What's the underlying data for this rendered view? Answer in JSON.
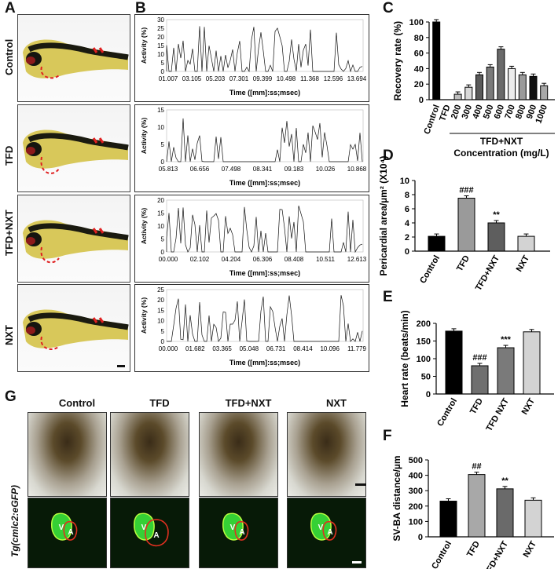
{
  "panel_letters": {
    "A": "A",
    "B": "B",
    "C": "C",
    "D": "D",
    "E": "E",
    "F": "F",
    "G": "G"
  },
  "rows": [
    {
      "label": "Control",
      "ticks": [
        "01.007",
        "03.105",
        "05.203",
        "07.301",
        "09.399",
        "10.498",
        "11.368",
        "12.596",
        "13.694"
      ],
      "yticks": [
        "0",
        "5",
        "10",
        "15",
        "20",
        "25",
        "30"
      ],
      "ymax": 30
    },
    {
      "label": "TFD",
      "ticks": [
        "05.813",
        "06.656",
        "07.498",
        "08.341",
        "09.183",
        "10.026",
        "10.868"
      ],
      "yticks": [
        "0",
        "5",
        "10",
        "15"
      ],
      "ymax": 15
    },
    {
      "label": "TFD+NXT",
      "ticks": [
        "00.000",
        "02.102",
        "04.204",
        "06.306",
        "08.408",
        "10.511",
        "12.613"
      ],
      "yticks": [
        "0",
        "5",
        "10",
        "15",
        "20"
      ],
      "ymax": 20
    },
    {
      "label": "NXT",
      "ticks": [
        "00.000",
        "01.682",
        "03.365",
        "05.048",
        "06.731",
        "08.414",
        "10.096",
        "11.779"
      ],
      "yticks": [
        "0",
        "5",
        "10",
        "15",
        "20",
        "25"
      ],
      "ymax": 25
    }
  ],
  "activity_ylabel": "Activity (%)",
  "activity_xlabel": "Time ([mm]:ss;msec)",
  "chart_data": [
    {
      "type": "bar",
      "title": "",
      "ylabel": "Recovery rate (%)",
      "xlabel": "Concentration (mg/L)",
      "group_label": "TFD+NXT",
      "categories": [
        "Control",
        "TFD",
        "200",
        "300",
        "400",
        "500",
        "600",
        "700",
        "800",
        "900",
        "1000"
      ],
      "values": [
        100,
        0,
        7,
        16,
        32,
        42,
        65,
        40,
        32,
        30,
        18
      ],
      "ylim": [
        0,
        100
      ],
      "yticks": [
        "0",
        "20",
        "40",
        "60",
        "80",
        "100"
      ]
    },
    {
      "type": "bar",
      "ylabel": "Pericardial area/µm² (X10⁴)",
      "categories": [
        "Control",
        "TFD",
        "TFD+NXT",
        "NXT"
      ],
      "values": [
        2.1,
        7.5,
        4.0,
        2.1
      ],
      "ylim": [
        0,
        10
      ],
      "yticks": [
        "0",
        "2",
        "4",
        "6",
        "8",
        "10"
      ],
      "annotations": [
        "",
        "###",
        "**",
        ""
      ]
    },
    {
      "type": "bar",
      "ylabel": "Heart rate (beats/min)",
      "categories": [
        "Control",
        "TFD",
        "TFD NXT",
        "NXT"
      ],
      "values": [
        178,
        80,
        131,
        176
      ],
      "ylim": [
        0,
        200
      ],
      "yticks": [
        "0",
        "50",
        "100",
        "150",
        "200"
      ],
      "annotations": [
        "",
        "###",
        "***",
        ""
      ]
    },
    {
      "type": "bar",
      "ylabel": "SV-BA distance/µm",
      "categories": [
        "Control",
        "TFD",
        "TFD+NXT",
        "NXT"
      ],
      "values": [
        232,
        405,
        312,
        238
      ],
      "ylim": [
        0,
        500
      ],
      "yticks": [
        "0",
        "100",
        "200",
        "300",
        "400",
        "500"
      ],
      "annotations": [
        "",
        "##",
        "**",
        ""
      ]
    }
  ],
  "panelG": {
    "columns": [
      "Control",
      "TFD",
      "TFD+NXT",
      "NXT"
    ],
    "row_label": "Tg(cmlc2:eGFP)",
    "chamber_v": "V",
    "chamber_a": "A"
  }
}
